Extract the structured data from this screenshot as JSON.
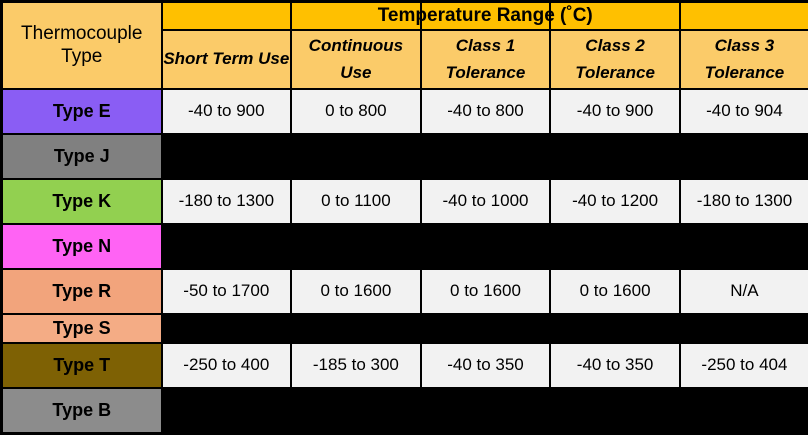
{
  "table": {
    "corner_header": "Thermocouple Type",
    "group_header": "Temperature Range (˚C)",
    "columns": [
      {
        "label": "Short Term Use"
      },
      {
        "label": "Continuous Use"
      },
      {
        "label": "Class 1 Tolerance"
      },
      {
        "label": "Class 2 Tolerance"
      },
      {
        "label": "Class 3 Tolerance"
      }
    ],
    "rows": [
      {
        "type": "Type E",
        "color": "#8a5df4",
        "hidden": false,
        "values": [
          "-40 to 900",
          "0 to 800",
          "-40 to 800",
          "-40 to 900",
          "-40 to 904"
        ]
      },
      {
        "type": "Type J",
        "color": "#808080",
        "hidden": true,
        "values": []
      },
      {
        "type": "Type K",
        "color": "#92d050",
        "hidden": false,
        "values": [
          "-180 to 1300",
          "0 to 1100",
          "-40 to 1000",
          "-40 to 1200",
          "-180 to 1300"
        ]
      },
      {
        "type": "Type N",
        "color": "#ff63f4",
        "hidden": true,
        "values": []
      },
      {
        "type": "Type R",
        "color": "#f2a47c",
        "hidden": false,
        "values": [
          "-50 to 1700",
          "0 to 1600",
          "0 to 1600",
          "0 to 1600",
          "N/A"
        ]
      },
      {
        "type": "Type S",
        "color": "#f4ac85",
        "hidden": true,
        "values": []
      },
      {
        "type": "Type T",
        "color": "#7e6104",
        "hidden": false,
        "values": [
          "-250 to 400",
          "-185 to 300",
          "-40 to 350",
          "-40 to 350",
          "-250 to 404"
        ]
      },
      {
        "type": "Type B",
        "color": "#8c8c8c",
        "hidden": true,
        "values": []
      }
    ],
    "colors": {
      "header_gold": "#ffc000",
      "header_light": "#fbcb69",
      "cell_bg": "#f2f2f2",
      "blackout": "#000000"
    }
  },
  "chart_data": {
    "type": "table",
    "title": "Temperature Range (˚C)",
    "row_header": "Thermocouple Type",
    "columns": [
      "Short Term Use",
      "Continuous Use",
      "Class 1 Tolerance",
      "Class 2 Tolerance",
      "Class 3 Tolerance"
    ],
    "rows": [
      {
        "name": "Type E",
        "values": [
          "-40 to 900",
          "0 to 800",
          "-40 to 800",
          "-40 to 900",
          "-40 to 904"
        ]
      },
      {
        "name": "Type J",
        "values": [
          null,
          null,
          null,
          null,
          null
        ]
      },
      {
        "name": "Type K",
        "values": [
          "-180 to 1300",
          "0 to 1100",
          "-40 to 1000",
          "-40 to 1200",
          "-180 to 1300"
        ]
      },
      {
        "name": "Type N",
        "values": [
          null,
          null,
          null,
          null,
          null
        ]
      },
      {
        "name": "Type R",
        "values": [
          "-50 to 1700",
          "0 to 1600",
          "0 to 1600",
          "0 to 1600",
          "N/A"
        ]
      },
      {
        "name": "Type S",
        "values": [
          null,
          null,
          null,
          null,
          null
        ]
      },
      {
        "name": "Type T",
        "values": [
          "-250 to 400",
          "-185 to 300",
          "-40 to 350",
          "-40 to 350",
          "-250 to 404"
        ]
      },
      {
        "name": "Type B",
        "values": [
          null,
          null,
          null,
          null,
          null
        ]
      }
    ]
  }
}
